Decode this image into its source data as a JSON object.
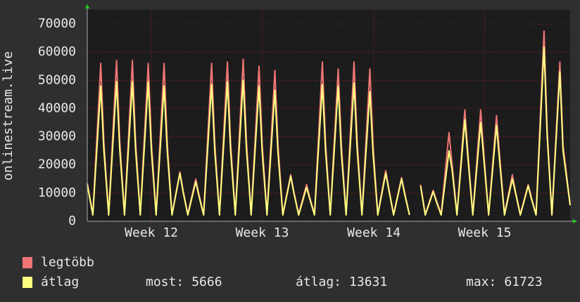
{
  "chart_data": {
    "type": "line",
    "y_label": "onlinestream.live",
    "x": [
      0,
      0.35,
      0.85,
      1.05,
      1.35,
      1.85,
      2.05,
      2.35,
      2.85,
      3.05,
      3.35,
      3.85,
      4.05,
      4.35,
      4.85,
      5.05,
      5.35,
      5.85,
      6.05,
      6.35,
      6.85,
      7.05,
      7.35,
      7.85,
      8.05,
      8.35,
      8.85,
      9.05,
      9.35,
      9.85,
      10.05,
      10.35,
      10.85,
      11.05,
      11.35,
      11.85,
      12.05,
      12.35,
      12.85,
      13.05,
      13.35,
      13.85,
      14.05,
      14.35,
      14.85,
      15.05,
      15.35,
      15.85,
      16.05,
      16.35,
      16.85,
      17.05,
      17.35,
      17.85,
      18.05,
      18.35,
      18.85,
      19.05,
      19.35,
      19.85,
      20.05,
      20.35,
      20.85,
      21.05,
      21.35,
      21.85,
      22.05,
      22.35,
      22.85,
      23.05,
      23.35,
      23.85,
      24.05,
      24.35,
      24.85,
      25.05,
      25.35,
      25.85,
      26.05,
      26.35,
      26.85,
      27.05,
      27.35,
      27.85,
      28.05,
      28.35,
      28.85,
      29.05,
      29.35,
      29.85,
      30.05,
      30.5
    ],
    "series": [
      {
        "name": "legtöbb",
        "color": "#ef7575",
        "values": [
          13500,
          2500,
          56000,
          28000,
          2500,
          57000,
          28500,
          2500,
          57000,
          28500,
          2500,
          56000,
          28000,
          2500,
          56000,
          28000,
          2500,
          17500,
          11000,
          2500,
          15000,
          9500,
          2500,
          56000,
          28000,
          2500,
          56500,
          28000,
          2500,
          57500,
          29000,
          2500,
          55000,
          27500,
          2500,
          53500,
          27000,
          2500,
          16500,
          10500,
          2500,
          13000,
          8500,
          2500,
          56500,
          28000,
          2500,
          54000,
          27000,
          2500,
          56500,
          28000,
          2500,
          54000,
          27000,
          2500,
          18000,
          11500,
          2500,
          15500,
          10000,
          2500,
          null,
          13000,
          2500,
          11000,
          7500,
          2500,
          31500,
          20000,
          2500,
          39500,
          24000,
          2500,
          39500,
          24000,
          2500,
          37500,
          23000,
          2500,
          16500,
          10500,
          2500,
          13000,
          8500,
          2500,
          67500,
          32000,
          2500,
          56500,
          27000,
          6000
        ]
      },
      {
        "name": "átlag",
        "color": "#ffff80",
        "values": [
          13000,
          2200,
          48000,
          25000,
          2200,
          49500,
          25500,
          2200,
          49500,
          25500,
          2200,
          49500,
          25000,
          2200,
          48000,
          25000,
          2200,
          17000,
          10500,
          2200,
          14000,
          9000,
          2200,
          48500,
          25000,
          2200,
          49500,
          25000,
          2200,
          50000,
          26000,
          2200,
          48000,
          24500,
          2200,
          46500,
          24000,
          2200,
          16000,
          10000,
          2200,
          12000,
          8000,
          2200,
          48500,
          25000,
          2200,
          48000,
          24000,
          2200,
          49000,
          25000,
          2200,
          46000,
          24000,
          2200,
          17000,
          11000,
          2200,
          15000,
          9500,
          2200,
          null,
          12500,
          2200,
          10500,
          7000,
          2200,
          25000,
          18000,
          2200,
          36000,
          22000,
          2200,
          35000,
          22000,
          2200,
          34000,
          21000,
          2200,
          15000,
          10000,
          2200,
          12500,
          8000,
          2200,
          61723,
          30000,
          2200,
          53000,
          25000,
          5666
        ]
      }
    ],
    "xlim": [
      0,
      30.5
    ],
    "xticks": [
      {
        "value": 4.05,
        "label": "Week 12"
      },
      {
        "value": 11.05,
        "label": "Week 13"
      },
      {
        "value": 18.1,
        "label": "Week 14"
      },
      {
        "value": 25.1,
        "label": "Week 15"
      }
    ],
    "ylim": [
      0,
      75000
    ],
    "yticks": [
      0,
      10000,
      20000,
      30000,
      40000,
      50000,
      60000,
      70000
    ],
    "grid": true,
    "stats": [
      {
        "label": "most:",
        "value": 5666
      },
      {
        "label": "átlag:",
        "value": 13631
      },
      {
        "label": "max:",
        "value": 61723
      }
    ]
  }
}
